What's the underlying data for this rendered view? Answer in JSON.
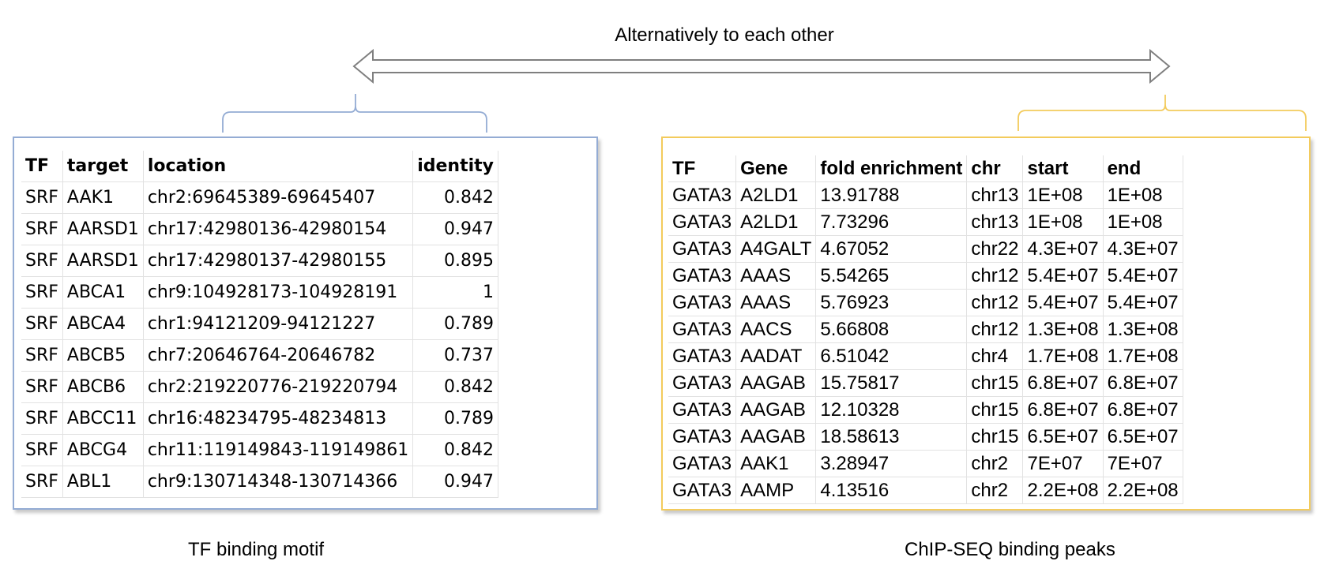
{
  "top_label": "Alternatively to each other",
  "colors": {
    "motif_accent": "#94acd4",
    "chip_accent": "#f3cb5c",
    "arrow": "#7f7f7f"
  },
  "motif_table": {
    "headers": [
      "TF",
      "target",
      "location",
      "identity"
    ],
    "rows": [
      [
        "SRF",
        "AAK1",
        "chr2:69645389-69645407",
        "0.842"
      ],
      [
        "SRF",
        "AARSD1",
        "chr17:42980136-42980154",
        "0.947"
      ],
      [
        "SRF",
        "AARSD1",
        "chr17:42980137-42980155",
        "0.895"
      ],
      [
        "SRF",
        "ABCA1",
        "chr9:104928173-104928191",
        "1"
      ],
      [
        "SRF",
        "ABCA4",
        "chr1:94121209-94121227",
        "0.789"
      ],
      [
        "SRF",
        "ABCB5",
        "chr7:20646764-20646782",
        "0.737"
      ],
      [
        "SRF",
        "ABCB6",
        "chr2:219220776-219220794",
        "0.842"
      ],
      [
        "SRF",
        "ABCC11",
        "chr16:48234795-48234813",
        "0.789"
      ],
      [
        "SRF",
        "ABCG4",
        "chr11:119149843-119149861",
        "0.842"
      ],
      [
        "SRF",
        "ABL1",
        "chr9:130714348-130714366",
        "0.947"
      ]
    ]
  },
  "chip_table": {
    "headers": [
      "TF",
      "Gene",
      "fold enrichment",
      "chr",
      "start",
      "end"
    ],
    "rows": [
      [
        "GATA3",
        "A2LD1",
        "13.91788",
        "chr13",
        "1E+08",
        "1E+08"
      ],
      [
        "GATA3",
        "A2LD1",
        "7.73296",
        "chr13",
        "1E+08",
        "1E+08"
      ],
      [
        "GATA3",
        "A4GALT",
        "4.67052",
        "chr22",
        "4.3E+07",
        "4.3E+07"
      ],
      [
        "GATA3",
        "AAAS",
        "5.54265",
        "chr12",
        "5.4E+07",
        "5.4E+07"
      ],
      [
        "GATA3",
        "AAAS",
        "5.76923",
        "chr12",
        "5.4E+07",
        "5.4E+07"
      ],
      [
        "GATA3",
        "AACS",
        "5.66808",
        "chr12",
        "1.3E+08",
        "1.3E+08"
      ],
      [
        "GATA3",
        "AADAT",
        "6.51042",
        "chr4",
        "1.7E+08",
        "1.7E+08"
      ],
      [
        "GATA3",
        "AAGAB",
        "15.75817",
        "chr15",
        "6.8E+07",
        "6.8E+07"
      ],
      [
        "GATA3",
        "AAGAB",
        "12.10328",
        "chr15",
        "6.8E+07",
        "6.8E+07"
      ],
      [
        "GATA3",
        "AAGAB",
        "18.58613",
        "chr15",
        "6.5E+07",
        "6.5E+07"
      ],
      [
        "GATA3",
        "AAK1",
        "3.28947",
        "chr2",
        "7E+07",
        "7E+07"
      ],
      [
        "GATA3",
        "AAMP",
        "4.13516",
        "chr2",
        "2.2E+08",
        "2.2E+08"
      ]
    ]
  },
  "captions": {
    "left": "TF binding motif",
    "right": "ChIP-SEQ binding peaks"
  }
}
